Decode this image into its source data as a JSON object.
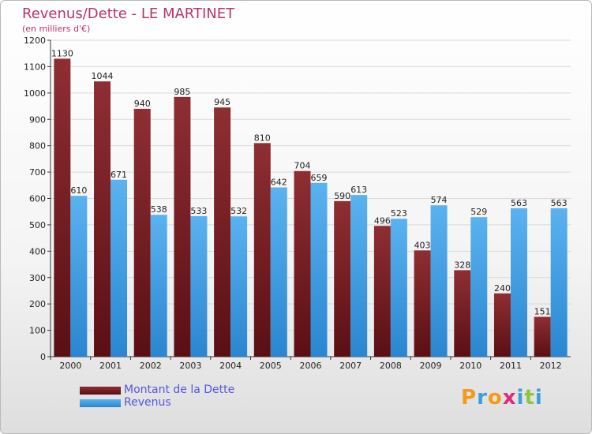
{
  "header": {
    "title": "Revenus/Dette - LE MARTINET",
    "subtitle": "(en milliers d'€)"
  },
  "colors": {
    "dette": "#7a1f24",
    "revenus": "#3f9fe6",
    "title": "#b8336a",
    "legend_text": "#5555dd"
  },
  "legend": {
    "items": [
      {
        "label": "Montant de la Dette",
        "color": "#7a1f24"
      },
      {
        "label": "Revenus",
        "color": "#3f9fe6"
      }
    ],
    "placement": "bottom-left"
  },
  "logo": {
    "text": "Proxiti"
  },
  "chart_data": {
    "type": "bar",
    "title": "Revenus/Dette - LE MARTINET",
    "ylabel": "(en milliers d'€)",
    "xlabel": "",
    "ylim": [
      0,
      1200
    ],
    "yticks": [
      0,
      100,
      200,
      300,
      400,
      500,
      600,
      700,
      800,
      900,
      1000,
      1100,
      1200
    ],
    "grid": true,
    "categories": [
      "2000",
      "2001",
      "2002",
      "2003",
      "2004",
      "2005",
      "2006",
      "2007",
      "2008",
      "2009",
      "2010",
      "2011",
      "2012"
    ],
    "series": [
      {
        "name": "Montant de la Dette",
        "color": "#7a1f24",
        "values": [
          1130,
          1044,
          940,
          985,
          945,
          810,
          704,
          590,
          496,
          403,
          328,
          240,
          151
        ]
      },
      {
        "name": "Revenus",
        "color": "#3f9fe6",
        "values": [
          610,
          671,
          538,
          533,
          532,
          642,
          659,
          613,
          523,
          574,
          529,
          563,
          563
        ]
      }
    ]
  }
}
